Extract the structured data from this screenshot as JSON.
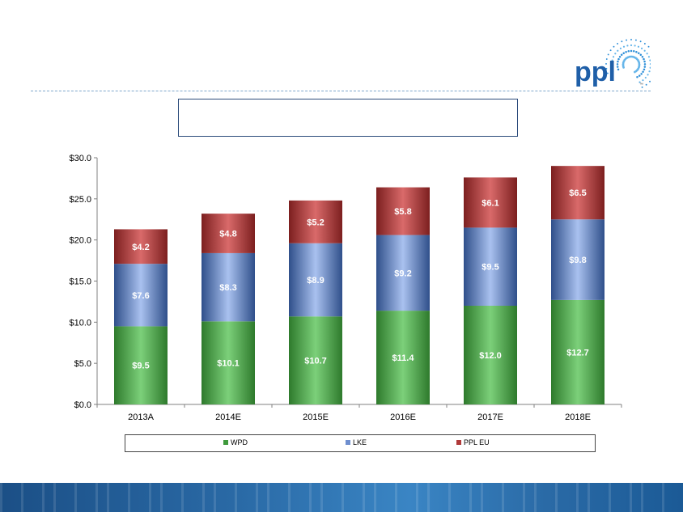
{
  "logo": {
    "text": "ppl",
    "tm": "™",
    "icon": "sunburst-logo"
  },
  "title_box": {
    "text": ""
  },
  "colors": {
    "wpd": "#3f9a3c",
    "lke": "#6f8fcf",
    "ppl_eu": "#b03a3a",
    "dash": "#7fa7cc",
    "footer": "#2a6aa6"
  },
  "chart_data": {
    "type": "bar",
    "stacked": true,
    "categories": [
      "2013A",
      "2014E",
      "2015E",
      "2016E",
      "2017E",
      "2018E"
    ],
    "series": [
      {
        "name": "WPD",
        "values": [
          9.5,
          10.1,
          10.7,
          11.4,
          12.0,
          12.7
        ],
        "labels": [
          "$9.5",
          "$10.1",
          "$10.7",
          "$11.4",
          "$12.0",
          "$12.7"
        ]
      },
      {
        "name": "LKE",
        "values": [
          7.6,
          8.3,
          8.9,
          9.2,
          9.5,
          9.8
        ],
        "labels": [
          "$7.6",
          "$8.3",
          "$8.9",
          "$9.2",
          "$9.5",
          "$9.8"
        ]
      },
      {
        "name": "PPL EU",
        "values": [
          4.2,
          4.8,
          5.2,
          5.8,
          6.1,
          6.5
        ],
        "labels": [
          "$4.2",
          "$4.8",
          "$5.2",
          "$5.8",
          "$6.1",
          "$6.5"
        ]
      }
    ],
    "yticks": [
      "$0.0",
      "$5.0",
      "$10.0",
      "$15.0",
      "$20.0",
      "$25.0",
      "$30.0"
    ],
    "ylim": [
      0,
      30
    ],
    "legend_position": "bottom",
    "grid": false
  }
}
